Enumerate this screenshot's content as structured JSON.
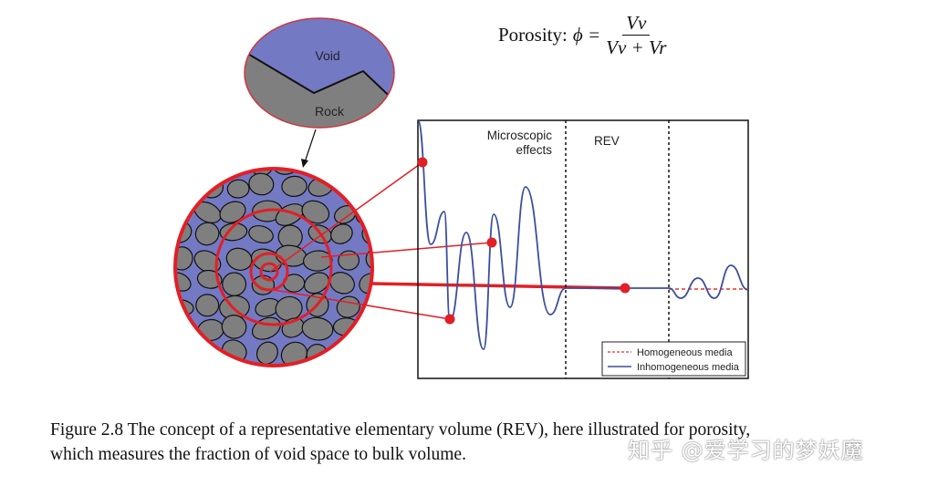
{
  "formula": {
    "label": "Porosity: ",
    "symbol": "ϕ =",
    "numerator": "Vv",
    "denominator": "Vv + Vr"
  },
  "zoom_ellipse": {
    "void_label": "Void",
    "rock_label": "Rock"
  },
  "plot": {
    "region_labels": [
      "Microscopic",
      "effects",
      "REV"
    ],
    "legend": [
      {
        "label": "Homogeneous media",
        "style": "dashed",
        "color": "#e8302a"
      },
      {
        "label": "Inhomogeneous media",
        "style": "solid",
        "color": "#3d4f9c"
      }
    ]
  },
  "caption": {
    "line1": "Figure 2.8  The concept of a representative elementary volume (REV), here illustrated for porosity,",
    "line2": "which measures the fraction of void space to bulk volume."
  },
  "watermark": "知乎 @爱学习的梦妖魔",
  "colors": {
    "void": "#7479c4",
    "rock": "#7f7f7f",
    "highlight": "#e21f26",
    "curve": "#3d4f9c"
  }
}
